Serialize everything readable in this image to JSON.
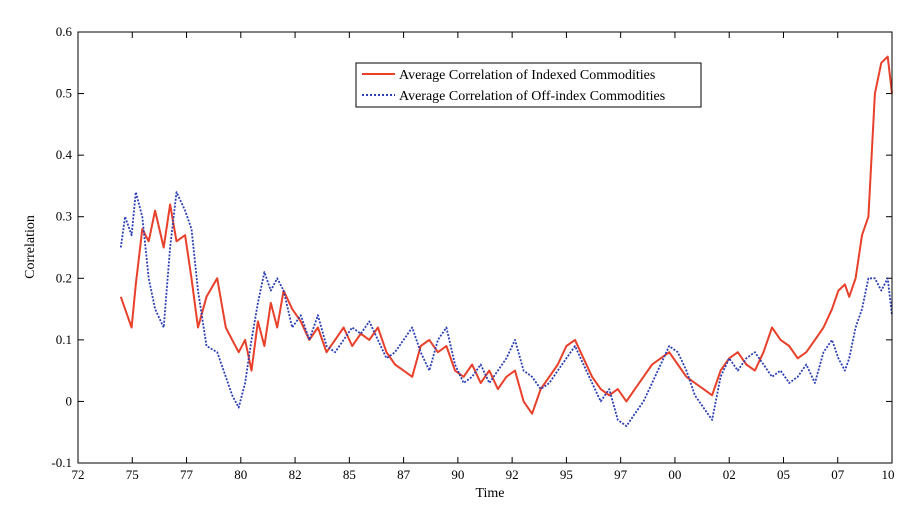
{
  "chart_data": {
    "type": "line",
    "title": "",
    "xlabel": "Time",
    "ylabel": "Correlation",
    "x_tick_labels": [
      "72",
      "75",
      "77",
      "80",
      "82",
      "85",
      "87",
      "90",
      "92",
      "95",
      "97",
      "00",
      "02",
      "05",
      "07",
      "10"
    ],
    "y_tick_labels": [
      "-0.1",
      "0",
      "0.1",
      "0.2",
      "0.3",
      "0.4",
      "0.5",
      "0.6"
    ],
    "xlim": [
      1972,
      2010
    ],
    "ylim": [
      -0.1,
      0.6
    ],
    "grid": false,
    "legend_position": "top-right",
    "series": [
      {
        "name": "Average Correlation of Indexed Commodities",
        "color": "#e8402a",
        "style": "solid",
        "x": [
          1974.0,
          1974.2,
          1974.5,
          1974.7,
          1975.0,
          1975.3,
          1975.6,
          1976.0,
          1976.3,
          1976.6,
          1977.0,
          1977.3,
          1977.6,
          1978.0,
          1978.5,
          1978.9,
          1979.2,
          1979.5,
          1979.8,
          1980.1,
          1980.4,
          1980.7,
          1981.0,
          1981.3,
          1981.6,
          1982.0,
          1982.4,
          1982.8,
          1983.2,
          1983.6,
          1984.0,
          1984.4,
          1984.8,
          1985.2,
          1985.6,
          1986.0,
          1986.4,
          1986.8,
          1987.2,
          1987.6,
          1988.0,
          1988.4,
          1988.8,
          1989.2,
          1989.6,
          1990.0,
          1990.4,
          1990.8,
          1991.2,
          1991.6,
          1992.0,
          1992.4,
          1992.8,
          1993.2,
          1993.6,
          1994.0,
          1994.4,
          1994.8,
          1995.2,
          1995.6,
          1996.0,
          1996.4,
          1996.8,
          1997.2,
          1997.6,
          1998.0,
          1998.4,
          1998.8,
          1999.2,
          1999.6,
          2000.0,
          2000.4,
          2000.8,
          2001.2,
          2001.6,
          2002.0,
          2002.4,
          2002.8,
          2003.2,
          2003.6,
          2004.0,
          2004.4,
          2004.8,
          2005.2,
          2005.6,
          2006.0,
          2006.4,
          2006.8,
          2007.2,
          2007.5,
          2007.8,
          2008.0,
          2008.3,
          2008.6,
          2008.9,
          2009.2,
          2009.5,
          2009.8,
          2010.0
        ],
        "values": [
          0.17,
          0.15,
          0.12,
          0.19,
          0.28,
          0.26,
          0.31,
          0.25,
          0.32,
          0.26,
          0.27,
          0.2,
          0.12,
          0.17,
          0.2,
          0.12,
          0.1,
          0.08,
          0.1,
          0.05,
          0.13,
          0.09,
          0.16,
          0.12,
          0.18,
          0.15,
          0.13,
          0.1,
          0.12,
          0.08,
          0.1,
          0.12,
          0.09,
          0.11,
          0.1,
          0.12,
          0.08,
          0.06,
          0.05,
          0.04,
          0.09,
          0.1,
          0.08,
          0.09,
          0.05,
          0.04,
          0.06,
          0.03,
          0.05,
          0.02,
          0.04,
          0.05,
          0.0,
          -0.02,
          0.02,
          0.04,
          0.06,
          0.09,
          0.1,
          0.07,
          0.04,
          0.02,
          0.01,
          0.02,
          0.0,
          0.02,
          0.04,
          0.06,
          0.07,
          0.08,
          0.06,
          0.04,
          0.03,
          0.02,
          0.01,
          0.05,
          0.07,
          0.08,
          0.06,
          0.05,
          0.08,
          0.12,
          0.1,
          0.09,
          0.07,
          0.08,
          0.1,
          0.12,
          0.15,
          0.18,
          0.19,
          0.17,
          0.2,
          0.27,
          0.3,
          0.5,
          0.55,
          0.56,
          0.5
        ]
      },
      {
        "name": "Average Correlation of Off-index Commodities",
        "color": "#2c3fb5",
        "style": "dotted",
        "x": [
          1974.0,
          1974.2,
          1974.5,
          1974.7,
          1975.0,
          1975.3,
          1975.6,
          1976.0,
          1976.3,
          1976.6,
          1977.0,
          1977.3,
          1977.6,
          1978.0,
          1978.5,
          1978.9,
          1979.2,
          1979.5,
          1979.8,
          1980.1,
          1980.4,
          1980.7,
          1981.0,
          1981.3,
          1981.6,
          1982.0,
          1982.4,
          1982.8,
          1983.2,
          1983.6,
          1984.0,
          1984.4,
          1984.8,
          1985.2,
          1985.6,
          1986.0,
          1986.4,
          1986.8,
          1987.2,
          1987.6,
          1988.0,
          1988.4,
          1988.8,
          1989.2,
          1989.6,
          1990.0,
          1990.4,
          1990.8,
          1991.2,
          1991.6,
          1992.0,
          1992.4,
          1992.8,
          1993.2,
          1993.6,
          1994.0,
          1994.4,
          1994.8,
          1995.2,
          1995.6,
          1996.0,
          1996.4,
          1996.8,
          1997.2,
          1997.6,
          1998.0,
          1998.4,
          1998.8,
          1999.2,
          1999.6,
          2000.0,
          2000.4,
          2000.8,
          2001.2,
          2001.6,
          2002.0,
          2002.4,
          2002.8,
          2003.2,
          2003.6,
          2004.0,
          2004.4,
          2004.8,
          2005.2,
          2005.6,
          2006.0,
          2006.4,
          2006.8,
          2007.2,
          2007.5,
          2007.8,
          2008.0,
          2008.3,
          2008.6,
          2008.9,
          2009.2,
          2009.5,
          2009.8,
          2010.0
        ],
        "values": [
          0.25,
          0.3,
          0.27,
          0.34,
          0.3,
          0.2,
          0.15,
          0.12,
          0.25,
          0.34,
          0.31,
          0.28,
          0.18,
          0.09,
          0.08,
          0.04,
          0.01,
          -0.01,
          0.03,
          0.1,
          0.16,
          0.21,
          0.18,
          0.2,
          0.18,
          0.12,
          0.14,
          0.1,
          0.14,
          0.09,
          0.08,
          0.1,
          0.12,
          0.11,
          0.13,
          0.1,
          0.07,
          0.08,
          0.1,
          0.12,
          0.08,
          0.05,
          0.1,
          0.12,
          0.06,
          0.03,
          0.04,
          0.06,
          0.03,
          0.05,
          0.07,
          0.1,
          0.05,
          0.04,
          0.02,
          0.03,
          0.05,
          0.07,
          0.09,
          0.06,
          0.03,
          0.0,
          0.02,
          -0.03,
          -0.04,
          -0.02,
          0.0,
          0.03,
          0.06,
          0.09,
          0.08,
          0.05,
          0.01,
          -0.01,
          -0.03,
          0.04,
          0.07,
          0.05,
          0.07,
          0.08,
          0.06,
          0.04,
          0.05,
          0.03,
          0.04,
          0.06,
          0.03,
          0.08,
          0.1,
          0.07,
          0.05,
          0.07,
          0.12,
          0.15,
          0.2,
          0.2,
          0.18,
          0.2,
          0.14
        ]
      }
    ]
  }
}
